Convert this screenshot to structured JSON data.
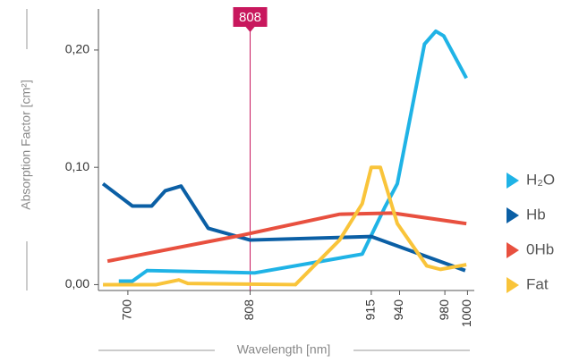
{
  "chart_data": {
    "type": "line",
    "ylabel": "Absorption Factor [cm²]",
    "xlabel": "Wavelength [nm]",
    "xlim": [
      674,
      1006
    ],
    "ylim": [
      -0.005,
      0.235
    ],
    "xticks": [
      700,
      808,
      915,
      940,
      980,
      1000
    ],
    "yticks": [
      {
        "value": 0,
        "label": "0,00"
      },
      {
        "value": 0.1,
        "label": "0,10"
      },
      {
        "value": 0.2,
        "label": "0,20"
      }
    ],
    "marker": 808,
    "marker_color": "#c8175d",
    "series": [
      {
        "name": "H₂O",
        "color": "#1fb3e6",
        "x": [
          692,
          704,
          717,
          812,
          907,
          927,
          938,
          962,
          972,
          979,
          999
        ],
        "values": [
          0.003,
          0.003,
          0.012,
          0.01,
          0.026,
          0.066,
          0.086,
          0.205,
          0.216,
          0.212,
          0.176
        ]
      },
      {
        "name": "Hb",
        "color": "#0b5fa5",
        "x": [
          678,
          704,
          721,
          733,
          747,
          771,
          808,
          915,
          998
        ],
        "values": [
          0.086,
          0.067,
          0.067,
          0.08,
          0.084,
          0.048,
          0.038,
          0.041,
          0.012
        ]
      },
      {
        "name": "0Hb",
        "color": "#e8503f",
        "x": [
          682,
          800,
          887,
          934,
          999
        ],
        "values": [
          0.02,
          0.042,
          0.06,
          0.061,
          0.052
        ]
      },
      {
        "name": "Fat",
        "color": "#f9c43a",
        "x": [
          678,
          725,
          745,
          753,
          848,
          887,
          907,
          915,
          923,
          938,
          964,
          976,
          999
        ],
        "values": [
          0.0,
          0.0,
          0.004,
          0.001,
          0.0,
          0.038,
          0.069,
          0.1,
          0.1,
          0.052,
          0.016,
          0.013,
          0.017
        ]
      }
    ]
  }
}
